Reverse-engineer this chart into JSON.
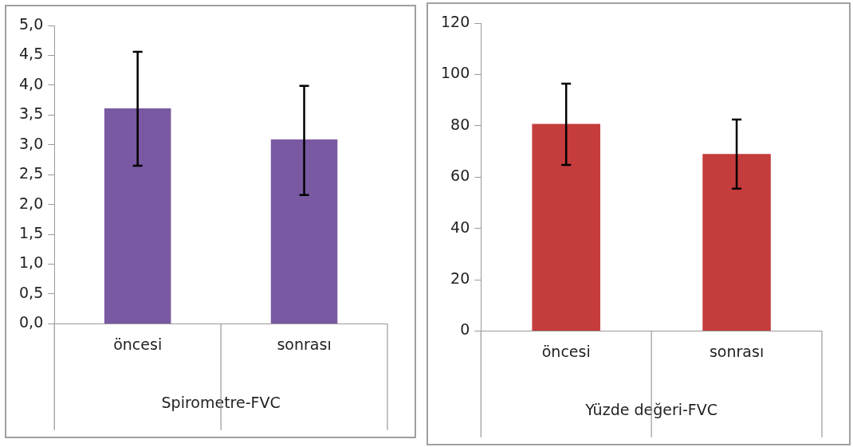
{
  "chart_data": [
    {
      "type": "bar",
      "xlabel": "Spirometre-FVC",
      "categories": [
        "öncesi",
        "sonrası"
      ],
      "values": [
        3.61,
        3.09
      ],
      "color": "#7a59a3",
      "errors": [
        [
          2.65,
          4.56
        ],
        [
          2.16,
          3.99
        ]
      ],
      "ylim": [
        0,
        5
      ],
      "yticks": [
        {
          "value": 0,
          "label": "0,0"
        },
        {
          "value": 0.5,
          "label": "0,5"
        },
        {
          "value": 1,
          "label": "1,0"
        },
        {
          "value": 1.5,
          "label": "1,5"
        },
        {
          "value": 2,
          "label": "2,0"
        },
        {
          "value": 2.5,
          "label": "2,5"
        },
        {
          "value": 3,
          "label": "3,0"
        },
        {
          "value": 3.5,
          "label": "3,5"
        },
        {
          "value": 4,
          "label": "4,0"
        },
        {
          "value": 4.5,
          "label": "4,5"
        },
        {
          "value": 5,
          "label": "5,0"
        }
      ],
      "grid": false,
      "legend": false
    },
    {
      "type": "bar",
      "xlabel": "Yüzde değeri-FVC",
      "categories": [
        "öncesi",
        "sonrası"
      ],
      "values": [
        80.7,
        69.0
      ],
      "color": "#c43c3c",
      "errors": [
        [
          64.7,
          96.4
        ],
        [
          55.5,
          82.4
        ]
      ],
      "ylim": [
        0,
        120
      ],
      "yticks": [
        0,
        20,
        40,
        60,
        80,
        100,
        120
      ],
      "grid": false,
      "legend": false
    }
  ]
}
